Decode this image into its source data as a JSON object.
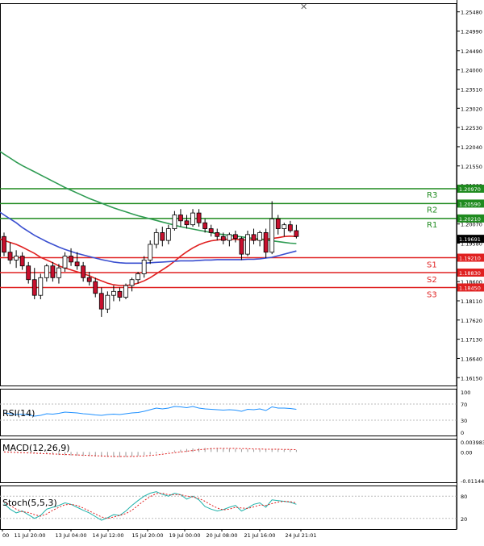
{
  "chart_data": {
    "type": "candlestick",
    "instrument_scale": "price",
    "price_axis_ticks": [
      "1.25480",
      "1.24990",
      "1.24490",
      "1.24000",
      "1.23510",
      "1.23020",
      "1.22530",
      "1.22040",
      "1.21550",
      "1.21060",
      "1.20070",
      "1.19580",
      "1.18600",
      "1.18110",
      "1.17620",
      "1.17130",
      "1.16640",
      "1.16150"
    ],
    "ylim": [
      1.1595,
      1.257
    ],
    "time_axis_ticks": [
      "00",
      "11 Jul 20:00",
      "13 Jul 04:00",
      "14 Jul 12:00",
      "15 Jul 20:00",
      "19 Jul 00:00",
      "20 Jul 08:00",
      "21 Jul 16:00",
      "24 Jul 21:01"
    ],
    "current_price": "1.19691",
    "levels": [
      {
        "name": "R3",
        "value": 1.2097,
        "label": "1.20970",
        "color": "#1f8a1f"
      },
      {
        "name": "R2",
        "value": 1.2059,
        "label": "1.20590",
        "color": "#1f8a1f"
      },
      {
        "name": "R1",
        "value": 1.2021,
        "label": "1.20210",
        "color": "#1f8a1f"
      },
      {
        "name": "S1",
        "value": 1.1921,
        "label": "1.19210",
        "color": "#e02020"
      },
      {
        "name": "S2",
        "value": 1.1883,
        "label": "1.18830",
        "color": "#e02020"
      },
      {
        "name": "S3",
        "value": 1.1845,
        "label": "1.18450",
        "color": "#e02020"
      }
    ],
    "candles": [
      [
        1.1975,
        1.1985,
        1.1925,
        1.1935
      ],
      [
        1.1935,
        1.196,
        1.1905,
        1.1915
      ],
      [
        1.1915,
        1.194,
        1.1895,
        1.1925
      ],
      [
        1.1925,
        1.1935,
        1.189,
        1.19
      ],
      [
        1.19,
        1.191,
        1.1855,
        1.1865
      ],
      [
        1.1865,
        1.1895,
        1.1815,
        1.1825
      ],
      [
        1.1825,
        1.188,
        1.1815,
        1.187
      ],
      [
        1.187,
        1.1905,
        1.186,
        1.19
      ],
      [
        1.19,
        1.191,
        1.186,
        1.187
      ],
      [
        1.187,
        1.1905,
        1.1855,
        1.1895
      ],
      [
        1.1895,
        1.1935,
        1.1885,
        1.1925
      ],
      [
        1.1925,
        1.1945,
        1.19,
        1.191
      ],
      [
        1.191,
        1.1935,
        1.189,
        1.19
      ],
      [
        1.19,
        1.191,
        1.186,
        1.187
      ],
      [
        1.187,
        1.1885,
        1.185,
        1.186
      ],
      [
        1.186,
        1.187,
        1.182,
        1.183
      ],
      [
        1.183,
        1.1845,
        1.177,
        1.179
      ],
      [
        1.179,
        1.1835,
        1.178,
        1.1825
      ],
      [
        1.1825,
        1.185,
        1.181,
        1.1835
      ],
      [
        1.1835,
        1.1845,
        1.181,
        1.182
      ],
      [
        1.182,
        1.1855,
        1.1815,
        1.185
      ],
      [
        1.185,
        1.187,
        1.1835,
        1.1865
      ],
      [
        1.1865,
        1.1885,
        1.1855,
        1.188
      ],
      [
        1.188,
        1.1925,
        1.187,
        1.1915
      ],
      [
        1.1915,
        1.1965,
        1.1905,
        1.1955
      ],
      [
        1.1955,
        1.1995,
        1.1945,
        1.1985
      ],
      [
        1.1985,
        1.2,
        1.195,
        1.1965
      ],
      [
        1.1965,
        1.2005,
        1.1955,
        1.1995
      ],
      [
        1.1995,
        1.204,
        1.199,
        1.203
      ],
      [
        1.203,
        1.2045,
        1.2,
        1.2015
      ],
      [
        1.2015,
        1.203,
        1.1995,
        1.2005
      ],
      [
        1.2005,
        1.2045,
        1.2,
        1.2035
      ],
      [
        1.2035,
        1.2045,
        1.2,
        1.201
      ],
      [
        1.201,
        1.202,
        1.1985,
        1.1995
      ],
      [
        1.1995,
        1.2005,
        1.1975,
        1.1985
      ],
      [
        1.1985,
        1.1995,
        1.1965,
        1.1975
      ],
      [
        1.1975,
        1.1985,
        1.1955,
        1.1965
      ],
      [
        1.1965,
        1.1985,
        1.195,
        1.198
      ],
      [
        1.198,
        1.199,
        1.196,
        1.197
      ],
      [
        1.197,
        1.1975,
        1.1915,
        1.193
      ],
      [
        1.193,
        1.199,
        1.1925,
        1.198
      ],
      [
        1.198,
        1.1995,
        1.1955,
        1.1965
      ],
      [
        1.1965,
        1.199,
        1.195,
        1.1985
      ],
      [
        1.1985,
        1.1995,
        1.192,
        1.1935
      ],
      [
        1.1935,
        1.2065,
        1.193,
        1.202
      ],
      [
        1.202,
        1.203,
        1.198,
        1.1995
      ],
      [
        1.1995,
        1.201,
        1.1975,
        1.2005
      ],
      [
        1.2005,
        1.2015,
        1.1985,
        1.199
      ],
      [
        1.199,
        1.2005,
        1.197,
        1.1975
      ]
    ],
    "moving_averages": [
      {
        "color": "#e02020",
        "values": [
          1.1965,
          1.196,
          1.1955,
          1.1948,
          1.194,
          1.1932,
          1.1922,
          1.1915,
          1.1908,
          1.19,
          1.1895,
          1.189,
          1.1885,
          1.188,
          1.1875,
          1.1868,
          1.1862,
          1.1856,
          1.1852,
          1.185,
          1.185,
          1.1852,
          1.1856,
          1.1862,
          1.187,
          1.188,
          1.189,
          1.19,
          1.1912,
          1.1925,
          1.1936,
          1.1946,
          1.1954,
          1.196,
          1.1964,
          1.1966,
          1.1968,
          1.1968,
          1.1968,
          1.1966,
          1.1966,
          1.1967,
          1.1968,
          1.1968,
          1.197,
          1.1972,
          1.1975,
          1.1976,
          1.1975
        ]
      },
      {
        "color": "#3a4fd0",
        "values": [
          1.203,
          1.202,
          1.201,
          1.1998,
          1.1988,
          1.1978,
          1.197,
          1.1962,
          1.1955,
          1.1948,
          1.1942,
          1.1937,
          1.1932,
          1.1928,
          1.1924,
          1.192,
          1.1916,
          1.1913,
          1.191,
          1.1908,
          1.1907,
          1.1907,
          1.1907,
          1.1907,
          1.1908,
          1.1909,
          1.191,
          1.1911,
          1.1912,
          1.1913,
          1.1913,
          1.1913,
          1.1914,
          1.1915,
          1.1915,
          1.1916,
          1.1916,
          1.1916,
          1.1916,
          1.1916,
          1.1917,
          1.1917,
          1.1918,
          1.192,
          1.1922,
          1.1926,
          1.193,
          1.1934,
          1.1938
        ]
      },
      {
        "color": "#2e9b52",
        "values": [
          1.2185,
          1.2175,
          1.2165,
          1.2156,
          1.2148,
          1.214,
          1.2132,
          1.2124,
          1.2116,
          1.2108,
          1.21,
          1.2093,
          1.2086,
          1.2079,
          1.2072,
          1.2066,
          1.206,
          1.2054,
          1.2048,
          1.2043,
          1.2038,
          1.2033,
          1.2028,
          1.2024,
          1.202,
          1.2016,
          1.2012,
          1.2008,
          1.2004,
          1.2,
          1.1997,
          1.1994,
          1.1991,
          1.1988,
          1.1985,
          1.1982,
          1.198,
          1.1978,
          1.1976,
          1.1974,
          1.1972,
          1.197,
          1.1968,
          1.1966,
          1.1964,
          1.1962,
          1.196,
          1.1958,
          1.1957
        ]
      }
    ],
    "rsi": {
      "label": "RSI(14)",
      "ticks": [
        "100",
        "70",
        "30",
        "0"
      ],
      "ylim": [
        0,
        100
      ],
      "values": [
        48,
        46,
        44,
        45,
        43,
        40,
        42,
        46,
        45,
        47,
        50,
        49,
        48,
        46,
        45,
        43,
        42,
        44,
        45,
        44,
        46,
        48,
        49,
        52,
        56,
        60,
        58,
        60,
        64,
        63,
        61,
        64,
        60,
        58,
        57,
        56,
        55,
        56,
        55,
        52,
        57,
        56,
        58,
        54,
        63,
        60,
        60,
        59,
        57
      ]
    },
    "macd": {
      "label": "MACD(12,26,9)",
      "ticks": [
        "0.003983",
        "0.00",
        "-0.011443"
      ],
      "ylim": [
        -0.011443,
        0.003983
      ],
      "histogram": [
        0.0003,
        0.0002,
        0.0001,
        0.0,
        -0.0002,
        -0.0004,
        -0.0006,
        -0.0008,
        -0.001,
        -0.0012,
        -0.0013,
        -0.0014,
        -0.0015,
        -0.0016,
        -0.0017,
        -0.0018,
        -0.0019,
        -0.002,
        -0.0021,
        -0.0021,
        -0.002,
        -0.0018,
        -0.0016,
        -0.0013,
        -0.001,
        -0.0006,
        -0.0002,
        0.0002,
        0.0006,
        0.0009,
        0.0012,
        0.0014,
        0.0015,
        0.0016,
        0.0016,
        0.0015,
        0.0014,
        0.0013,
        0.0012,
        0.0011,
        0.0011,
        0.001,
        0.001,
        0.0009,
        0.001,
        0.001,
        0.0009,
        0.0009,
        0.0008
      ],
      "signal": [
        0.0,
        -0.0001,
        -0.0002,
        -0.0003,
        -0.0004,
        -0.0005,
        -0.0006,
        -0.0007,
        -0.0008,
        -0.0009,
        -0.001,
        -0.0011,
        -0.0012,
        -0.0013,
        -0.0014,
        -0.0015,
        -0.0016,
        -0.0017,
        -0.0018,
        -0.0018,
        -0.0018,
        -0.0018,
        -0.0017,
        -0.0016,
        -0.0014,
        -0.0012,
        -0.0009,
        -0.0006,
        -0.0003,
        0.0,
        0.0003,
        0.0006,
        0.0009,
        0.0011,
        0.0013,
        0.0014,
        0.0014,
        0.0014,
        0.0014,
        0.0013,
        0.0013,
        0.0012,
        0.0012,
        0.0011,
        0.0011,
        0.0011,
        0.001,
        0.001,
        0.0009
      ]
    },
    "stoch": {
      "label": "Stoch(5,5,3)",
      "ticks": [
        "80",
        "20"
      ],
      "ylim": [
        0,
        100
      ],
      "main": [
        60,
        45,
        35,
        40,
        30,
        20,
        28,
        45,
        50,
        55,
        62,
        58,
        50,
        42,
        35,
        25,
        15,
        22,
        30,
        28,
        40,
        55,
        68,
        80,
        88,
        92,
        85,
        80,
        88,
        84,
        72,
        80,
        70,
        52,
        45,
        40,
        44,
        50,
        55,
        40,
        48,
        58,
        62,
        50,
        70,
        68,
        66,
        64,
        58
      ],
      "signal": [
        65,
        55,
        45,
        38,
        36,
        30,
        26,
        32,
        42,
        50,
        57,
        58,
        55,
        48,
        40,
        32,
        24,
        20,
        24,
        28,
        33,
        42,
        55,
        68,
        79,
        87,
        88,
        84,
        84,
        84,
        80,
        78,
        74,
        66,
        56,
        48,
        43,
        45,
        50,
        48,
        47,
        51,
        56,
        55,
        60,
        64,
        66,
        65,
        62
      ]
    }
  }
}
